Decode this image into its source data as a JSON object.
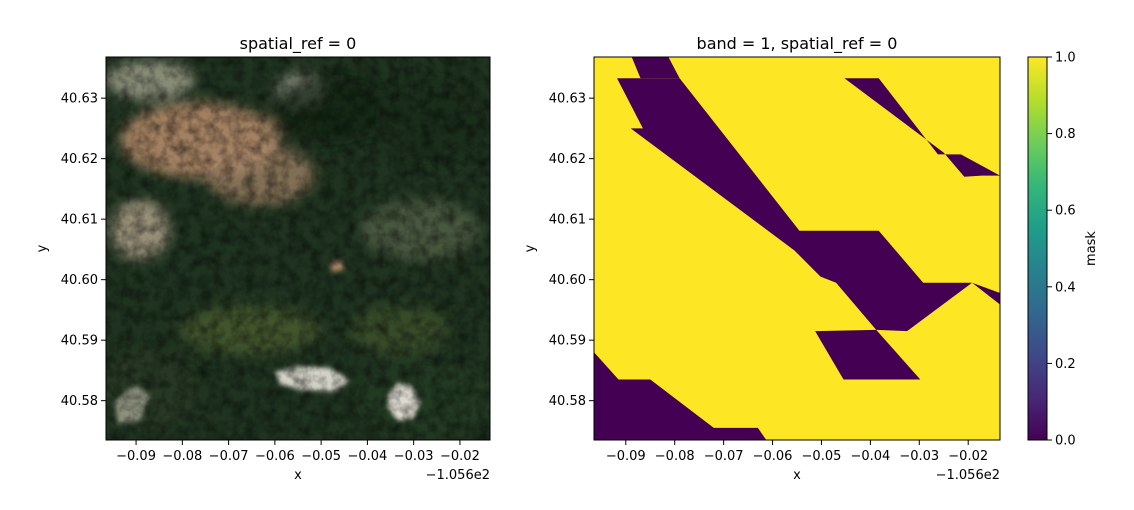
{
  "chart_data": [
    {
      "type": "image",
      "title": "spatial_ref = 0",
      "xlabel": "x",
      "ylabel": "y",
      "x_offset_label": "−1.056e2",
      "xlim": [
        -0.0965,
        -0.0135
      ],
      "ylim": [
        40.5735,
        40.6368
      ],
      "x_ticks": [
        -0.09,
        -0.08,
        -0.07,
        -0.06,
        -0.05,
        -0.04,
        -0.03,
        -0.02
      ],
      "x_tick_labels": [
        "−0.09",
        "−0.08",
        "−0.07",
        "−0.06",
        "−0.05",
        "−0.04",
        "−0.03",
        "−0.02"
      ],
      "y_ticks": [
        40.58,
        40.59,
        40.6,
        40.61,
        40.62,
        40.63
      ],
      "y_tick_labels": [
        "40.58",
        "40.59",
        "40.60",
        "40.61",
        "40.62",
        "40.63"
      ],
      "colors": {
        "forest": "#1f3320",
        "forest_dark": "#142416",
        "bare_ground": "#b98d6c",
        "snow": "#e6e2d8",
        "meadow": "#6c7a33"
      }
    },
    {
      "type": "heatmap",
      "title": "band = 1, spatial_ref = 0",
      "xlabel": "x",
      "ylabel": "y",
      "x_offset_label": "−1.056e2",
      "xlim": [
        -0.0965,
        -0.0135
      ],
      "ylim": [
        40.5735,
        40.6368
      ],
      "x_ticks": [
        -0.09,
        -0.08,
        -0.07,
        -0.06,
        -0.05,
        -0.04,
        -0.03,
        -0.02
      ],
      "x_tick_labels": [
        "−0.09",
        "−0.08",
        "−0.07",
        "−0.06",
        "−0.05",
        "−0.04",
        "−0.03",
        "−0.02"
      ],
      "y_ticks": [
        40.58,
        40.59,
        40.6,
        40.61,
        40.62,
        40.63
      ],
      "y_tick_labels": [
        "40.58",
        "40.59",
        "40.60",
        "40.61",
        "40.62",
        "40.63"
      ],
      "background_value": 1.0,
      "colorbar": {
        "label": "mask",
        "range": [
          0.0,
          1.0
        ],
        "ticks": [
          0.0,
          0.2,
          0.4,
          0.6,
          0.8,
          1.0
        ],
        "tick_labels": [
          "0.0",
          "0.2",
          "0.4",
          "0.6",
          "0.8",
          "1.0"
        ],
        "colormap": "viridis",
        "stops": [
          "#440154",
          "#482878",
          "#3e4989",
          "#31688e",
          "#26828e",
          "#1f9e89",
          "#35b779",
          "#6ece58",
          "#b5de2b",
          "#fde725"
        ]
      },
      "regions": [
        {
          "value": 0.0,
          "polygon": [
            [
              -0.0888,
              40.6368
            ],
            [
              -0.0813,
              40.6368
            ],
            [
              -0.079,
              40.6333
            ],
            [
              -0.087,
              40.6333
            ]
          ]
        },
        {
          "value": 0.0,
          "polygon": [
            [
              -0.0918,
              40.6333
            ],
            [
              -0.079,
              40.6333
            ],
            [
              -0.0545,
              40.6081
            ],
            [
              -0.0383,
              40.6081
            ],
            [
              -0.0292,
              40.5995
            ],
            [
              -0.0192,
              40.5995
            ],
            [
              -0.0135,
              40.5978
            ],
            [
              -0.0135,
              40.5959
            ],
            [
              -0.0192,
              40.5995
            ],
            [
              -0.0325,
              40.5915
            ],
            [
              -0.0388,
              40.5917
            ],
            [
              -0.047,
              40.5995
            ],
            [
              -0.0502,
              40.6005
            ],
            [
              -0.0555,
              40.6048
            ],
            [
              -0.089,
              40.625
            ],
            [
              -0.0865,
              40.625
            ]
          ]
        },
        {
          "value": 0.0,
          "polygon": [
            [
              -0.0453,
              40.6333
            ],
            [
              -0.0383,
              40.6333
            ],
            [
              -0.0262,
              40.6207
            ],
            [
              -0.0215,
              40.6207
            ],
            [
              -0.0135,
              40.6172
            ],
            [
              -0.0172,
              40.6172
            ],
            [
              -0.0208,
              40.617
            ],
            [
              -0.025,
              40.621
            ]
          ]
        },
        {
          "value": 0.0,
          "polygon": [
            [
              -0.0513,
              40.5915
            ],
            [
              -0.0388,
              40.5917
            ],
            [
              -0.0298,
              40.5835
            ],
            [
              -0.0455,
              40.5835
            ]
          ]
        },
        {
          "value": 0.0,
          "polygon": [
            [
              -0.0965,
              40.588
            ],
            [
              -0.0915,
              40.5835
            ],
            [
              -0.085,
              40.5835
            ],
            [
              -0.072,
              40.5755
            ],
            [
              -0.063,
              40.5755
            ],
            [
              -0.0613,
              40.5735
            ],
            [
              -0.0965,
              40.5735
            ]
          ]
        }
      ]
    }
  ]
}
